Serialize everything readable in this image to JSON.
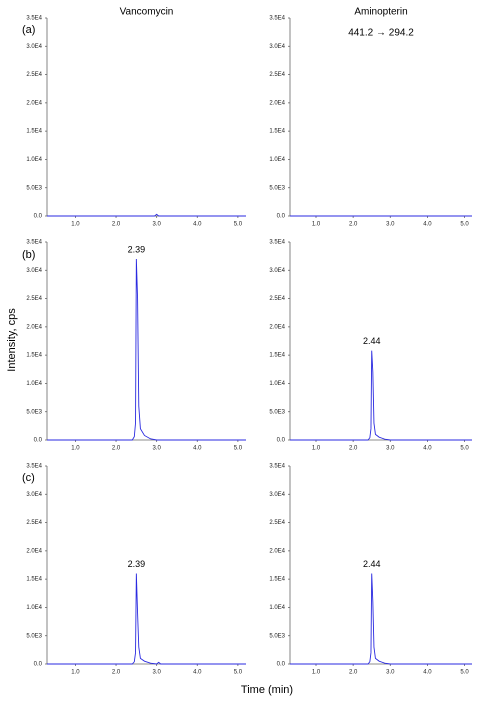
{
  "panel_labels": [
    "(a)",
    "(b)",
    "(c)"
  ],
  "y_label": "Intensity, cps",
  "x_label": "Time (min)",
  "chart_data": [
    {
      "type": "line",
      "title": "Vancomycin",
      "color": "#2a2ae0",
      "x": [
        0.3,
        2.95,
        3.0,
        3.05,
        5.2
      ],
      "values": [
        0,
        0,
        300,
        0,
        0
      ],
      "xlim": [
        0.3,
        5.2
      ],
      "ylim": [
        0,
        35000
      ],
      "xticks": [
        {
          "value": 1,
          "label": "1.0"
        },
        {
          "value": 2,
          "label": "2.0"
        },
        {
          "value": 3,
          "label": "3.0"
        },
        {
          "value": 4,
          "label": "4.0"
        },
        {
          "value": 5,
          "label": "5.0"
        }
      ],
      "yticks": [
        {
          "value": 0,
          "label": "0.0"
        },
        {
          "value": 5000,
          "label": "5.0E3"
        },
        {
          "value": 10000,
          "label": "1.0E4"
        },
        {
          "value": 15000,
          "label": "1.5E4"
        },
        {
          "value": 20000,
          "label": "2.0E4"
        },
        {
          "value": 25000,
          "label": "2.5E4"
        },
        {
          "value": 30000,
          "label": "3.0E4"
        },
        {
          "value": 35000,
          "label": "3.5E4"
        }
      ]
    },
    {
      "type": "line",
      "title": "Aminopterin",
      "subtitle": "441.2 → 294.2",
      "color": "#2a2ae0",
      "x": [
        0.3,
        5.2
      ],
      "values": [
        0,
        0
      ],
      "xlim": [
        0.3,
        5.2
      ],
      "ylim": [
        0,
        35000
      ],
      "xticks": [
        {
          "value": 1,
          "label": "1.0"
        },
        {
          "value": 2,
          "label": "2.0"
        },
        {
          "value": 3,
          "label": "3.0"
        },
        {
          "value": 4,
          "label": "4.0"
        },
        {
          "value": 5,
          "label": "5.0"
        }
      ],
      "yticks": [
        {
          "value": 0,
          "label": "0.0"
        },
        {
          "value": 5000,
          "label": "5.0E3"
        },
        {
          "value": 10000,
          "label": "1.0E4"
        },
        {
          "value": 15000,
          "label": "1.5E4"
        },
        {
          "value": 20000,
          "label": "2.0E4"
        },
        {
          "value": 25000,
          "label": "2.5E4"
        },
        {
          "value": 30000,
          "label": "3.0E4"
        },
        {
          "value": 35000,
          "label": "3.5E4"
        }
      ]
    },
    {
      "type": "line",
      "annotation": "2.39",
      "color": "#2a2ae0",
      "x": [
        0.3,
        2.4,
        2.45,
        2.48,
        2.5,
        2.53,
        2.56,
        2.6,
        2.7,
        2.85,
        3.0,
        5.2
      ],
      "values": [
        0,
        0,
        600,
        3000,
        32000,
        25000,
        6000,
        2000,
        800,
        200,
        0,
        0
      ],
      "xlim": [
        0.3,
        5.2
      ],
      "ylim": [
        0,
        35000
      ],
      "xticks": [
        {
          "value": 1,
          "label": "1.0"
        },
        {
          "value": 2,
          "label": "2.0"
        },
        {
          "value": 3,
          "label": "3.0"
        },
        {
          "value": 4,
          "label": "4.0"
        },
        {
          "value": 5,
          "label": "5.0"
        }
      ],
      "yticks": [
        {
          "value": 0,
          "label": "0.0"
        },
        {
          "value": 5000,
          "label": "5.0E3"
        },
        {
          "value": 10000,
          "label": "1.0E4"
        },
        {
          "value": 15000,
          "label": "1.5E4"
        },
        {
          "value": 20000,
          "label": "2.0E4"
        },
        {
          "value": 25000,
          "label": "2.5E4"
        },
        {
          "value": 30000,
          "label": "3.0E4"
        },
        {
          "value": 35000,
          "label": "3.5E4"
        }
      ]
    },
    {
      "type": "line",
      "annotation": "2.44",
      "color": "#2a2ae0",
      "x": [
        0.3,
        2.4,
        2.45,
        2.48,
        2.5,
        2.53,
        2.56,
        2.6,
        2.7,
        2.85,
        3.0,
        5.2
      ],
      "values": [
        0,
        0,
        400,
        2000,
        15800,
        12000,
        3000,
        1000,
        500,
        150,
        0,
        0
      ],
      "xlim": [
        0.3,
        5.2
      ],
      "ylim": [
        0,
        35000
      ],
      "xticks": [
        {
          "value": 1,
          "label": "1.0"
        },
        {
          "value": 2,
          "label": "2.0"
        },
        {
          "value": 3,
          "label": "3.0"
        },
        {
          "value": 4,
          "label": "4.0"
        },
        {
          "value": 5,
          "label": "5.0"
        }
      ],
      "yticks": [
        {
          "value": 0,
          "label": "0.0"
        },
        {
          "value": 5000,
          "label": "5.0E3"
        },
        {
          "value": 10000,
          "label": "1.0E4"
        },
        {
          "value": 15000,
          "label": "1.5E4"
        },
        {
          "value": 20000,
          "label": "2.0E4"
        },
        {
          "value": 25000,
          "label": "2.5E4"
        },
        {
          "value": 30000,
          "label": "3.0E4"
        },
        {
          "value": 35000,
          "label": "3.5E4"
        }
      ]
    },
    {
      "type": "line",
      "annotation": "2.39",
      "color": "#2a2ae0",
      "x": [
        0.3,
        2.4,
        2.45,
        2.48,
        2.5,
        2.53,
        2.56,
        2.6,
        2.7,
        2.85,
        3.0,
        3.05,
        3.1,
        5.2
      ],
      "values": [
        0,
        0,
        400,
        2000,
        16000,
        9000,
        3000,
        1000,
        500,
        150,
        0,
        300,
        0,
        0
      ],
      "xlim": [
        0.3,
        5.2
      ],
      "ylim": [
        0,
        35000
      ],
      "xticks": [
        {
          "value": 1,
          "label": "1.0"
        },
        {
          "value": 2,
          "label": "2.0"
        },
        {
          "value": 3,
          "label": "3.0"
        },
        {
          "value": 4,
          "label": "4.0"
        },
        {
          "value": 5,
          "label": "5.0"
        }
      ],
      "yticks": [
        {
          "value": 0,
          "label": "0.0"
        },
        {
          "value": 5000,
          "label": "5.0E3"
        },
        {
          "value": 10000,
          "label": "1.0E4"
        },
        {
          "value": 15000,
          "label": "1.5E4"
        },
        {
          "value": 20000,
          "label": "2.0E4"
        },
        {
          "value": 25000,
          "label": "2.5E4"
        },
        {
          "value": 30000,
          "label": "3.0E4"
        },
        {
          "value": 35000,
          "label": "3.5E4"
        }
      ]
    },
    {
      "type": "line",
      "annotation": "2.44",
      "color": "#2a2ae0",
      "x": [
        0.3,
        2.4,
        2.45,
        2.48,
        2.5,
        2.53,
        2.56,
        2.6,
        2.7,
        2.85,
        3.0,
        5.2
      ],
      "values": [
        0,
        0,
        400,
        2000,
        16000,
        11000,
        3000,
        1000,
        500,
        150,
        0,
        0
      ],
      "xlim": [
        0.3,
        5.2
      ],
      "ylim": [
        0,
        35000
      ],
      "xticks": [
        {
          "value": 1,
          "label": "1.0"
        },
        {
          "value": 2,
          "label": "2.0"
        },
        {
          "value": 3,
          "label": "3.0"
        },
        {
          "value": 4,
          "label": "4.0"
        },
        {
          "value": 5,
          "label": "5.0"
        }
      ],
      "yticks": [
        {
          "value": 0,
          "label": "0.0"
        },
        {
          "value": 5000,
          "label": "5.0E3"
        },
        {
          "value": 10000,
          "label": "1.0E4"
        },
        {
          "value": 15000,
          "label": "1.5E4"
        },
        {
          "value": 20000,
          "label": "2.0E4"
        },
        {
          "value": 25000,
          "label": "2.5E4"
        },
        {
          "value": 30000,
          "label": "3.0E4"
        },
        {
          "value": 35000,
          "label": "3.5E4"
        }
      ]
    }
  ]
}
